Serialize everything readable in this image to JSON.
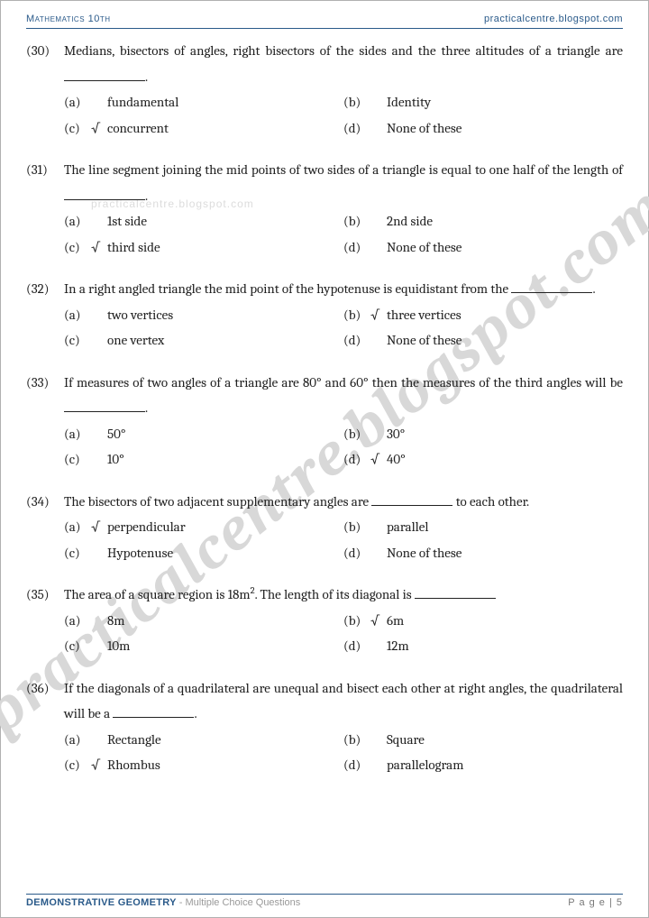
{
  "header": {
    "left": "Mathematics 10th",
    "right": "practicalcentre.blogspot.com"
  },
  "watermark": "practicalcentre.blogspot.com",
  "watermark2": "practicalcentre.blogspot.com",
  "footer": {
    "title": "DEMONSTRATIVE GEOMETRY",
    "subtitle": " - Multiple Choice Questions",
    "page": "P a g e  | 5"
  },
  "checkmark": "√",
  "questions": [
    {
      "num": "(30)",
      "text_pre": "Medians, bisectors of angles, right bisectors of the sides and the three altitudes of a triangle are ",
      "text_post": ".",
      "options": [
        {
          "label": "(a)",
          "text": "fundamental",
          "correct": false
        },
        {
          "label": "(b)",
          "text": "Identity",
          "correct": false
        },
        {
          "label": "(c)",
          "text": "concurrent",
          "correct": true
        },
        {
          "label": "(d)",
          "text": "None of these",
          "correct": false
        }
      ]
    },
    {
      "num": "(31)",
      "text_pre": "The line segment joining the mid points of two sides of a triangle is equal to one half of the length of ",
      "text_post": ".",
      "options": [
        {
          "label": "(a)",
          "text": "1st side",
          "correct": false
        },
        {
          "label": "(b)",
          "text": "2nd side",
          "correct": false
        },
        {
          "label": "(c)",
          "text": "third side",
          "correct": true
        },
        {
          "label": "(d)",
          "text": "None of these",
          "correct": false
        }
      ]
    },
    {
      "num": "(32)",
      "text_pre": "In a right angled triangle the mid point of the hypotenuse is equidistant from the ",
      "text_post": ".",
      "options": [
        {
          "label": "(a)",
          "text": "two vertices",
          "correct": false
        },
        {
          "label": "(b)",
          "text": "three vertices",
          "correct": true
        },
        {
          "label": "(c)",
          "text": "one vertex",
          "correct": false
        },
        {
          "label": "(d)",
          "text": "None of these",
          "correct": false
        }
      ]
    },
    {
      "num": "(33)",
      "text_pre": "If measures of two angles of a triangle are 80° and 60° then the measures of the third angles will be ",
      "text_post": ".",
      "options": [
        {
          "label": "(a)",
          "text": "50°",
          "correct": false
        },
        {
          "label": "(b)",
          "text": "30°",
          "correct": false
        },
        {
          "label": "(c)",
          "text": "10°",
          "correct": false
        },
        {
          "label": "(d)",
          "text": "40°",
          "correct": true
        }
      ]
    },
    {
      "num": "(34)",
      "text_pre": "The bisectors of two adjacent supplementary angles are ",
      "text_post": " to each other.",
      "options": [
        {
          "label": "(a)",
          "text": "perpendicular",
          "correct": true
        },
        {
          "label": "(b)",
          "text": "parallel",
          "correct": false
        },
        {
          "label": "(c)",
          "text": "Hypotenuse",
          "correct": false
        },
        {
          "label": "(d)",
          "text": "None of these",
          "correct": false
        }
      ]
    },
    {
      "num": "(35)",
      "text_pre": "The area of a square region is 18m",
      "sup": "2",
      "text_mid": ". The length of its diagonal is ",
      "text_post": "",
      "options": [
        {
          "label": "(a)",
          "text": "8m",
          "correct": false
        },
        {
          "label": "(b)",
          "text": "6m",
          "correct": true
        },
        {
          "label": "(c)",
          "text": "10m",
          "correct": false
        },
        {
          "label": "(d)",
          "text": "12m",
          "correct": false
        }
      ]
    },
    {
      "num": "(36)",
      "text_pre": "If the diagonals of a quadrilateral are unequal and bisect each other at right angles, the quadrilateral will be a ",
      "text_post": ".",
      "options": [
        {
          "label": "(a)",
          "text": "Rectangle",
          "correct": false
        },
        {
          "label": "(b)",
          "text": "Square",
          "correct": false
        },
        {
          "label": "(c)",
          "text": "Rhombus",
          "correct": true
        },
        {
          "label": "(d)",
          "text": "parallelogram",
          "correct": false
        }
      ]
    }
  ]
}
